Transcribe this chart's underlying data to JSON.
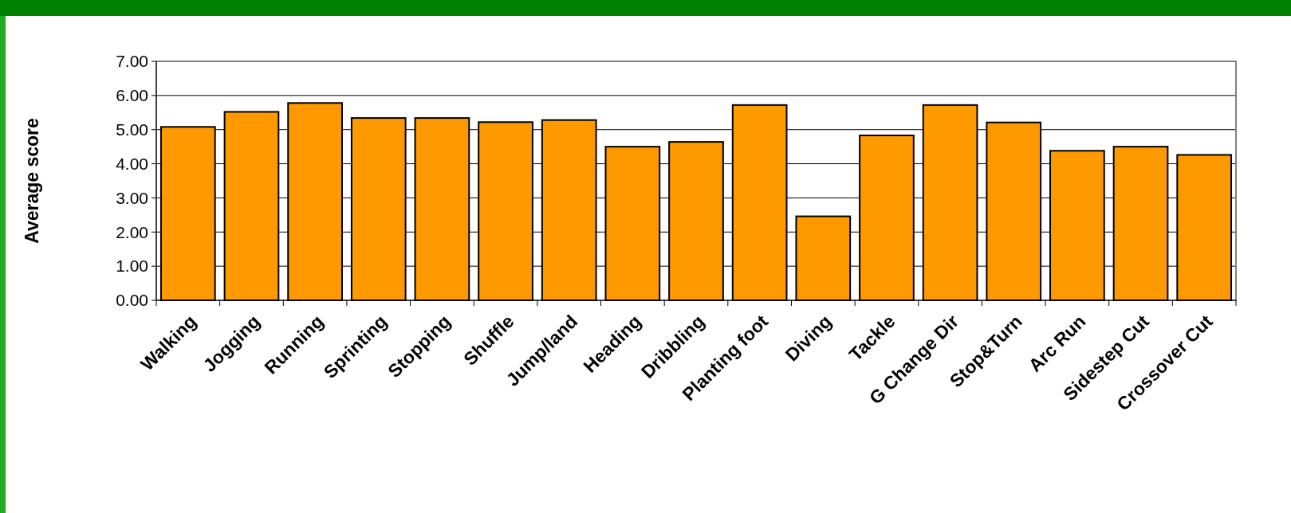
{
  "chart_data": {
    "type": "bar",
    "ylabel": "Average score",
    "categories": [
      "Walking",
      "Jogging",
      "Running",
      "Sprinting",
      "Stopping",
      "Shuffle",
      "Jump/land",
      "Heading",
      "Dribbling",
      "Planting foot",
      "Diving",
      "Tackle",
      "G Change Dir",
      "Stop&Turn",
      "Arc Run",
      "Sidestep Cut",
      "Crossover Cut"
    ],
    "values": [
      5.08,
      5.52,
      5.78,
      5.34,
      5.34,
      5.22,
      5.28,
      4.5,
      4.64,
      5.72,
      2.46,
      4.83,
      5.72,
      5.21,
      4.38,
      4.5,
      4.26
    ],
    "color": "#ff9900",
    "ylim": [
      0,
      7
    ],
    "yticks": [
      {
        "value": 0,
        "label": "0.00"
      },
      {
        "value": 1,
        "label": "1.00"
      },
      {
        "value": 2,
        "label": "2.00"
      },
      {
        "value": 3,
        "label": "3.00"
      },
      {
        "value": 4,
        "label": "4.00"
      },
      {
        "value": 5,
        "label": "5.00"
      },
      {
        "value": 6,
        "label": "6.00"
      },
      {
        "value": 7,
        "label": "7.00"
      }
    ],
    "grid": "y"
  }
}
